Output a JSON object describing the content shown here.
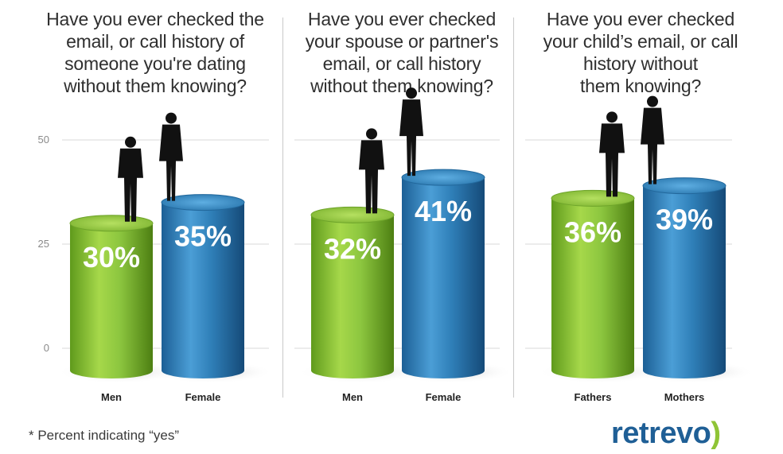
{
  "chart_data": [
    {
      "type": "bar",
      "title": "Have you ever checked the\nemail, or call history of\nsomeone you're dating\nwithout them knowing?",
      "categories": [
        "Men",
        "Female"
      ],
      "values": [
        30,
        35
      ],
      "value_labels": [
        "30%",
        "35%"
      ],
      "colors": [
        "#8cc63f",
        "#2f7fb8"
      ],
      "yticks": [
        0,
        25,
        50
      ],
      "ylim": [
        0,
        50
      ],
      "grid": true
    },
    {
      "type": "bar",
      "title": "Have you ever checked\nyour spouse or partner's\nemail, or call history\nwithout them knowing?",
      "categories": [
        "Men",
        "Female"
      ],
      "values": [
        32,
        41
      ],
      "value_labels": [
        "32%",
        "41%"
      ],
      "colors": [
        "#8cc63f",
        "#2f7fb8"
      ],
      "ylim": [
        0,
        50
      ],
      "grid": true
    },
    {
      "type": "bar",
      "title": "Have you ever checked\nyour child’s email, or call\nhistory without\nthem knowing?",
      "categories": [
        "Fathers",
        "Mothers"
      ],
      "values": [
        36,
        39
      ],
      "value_labels": [
        "36%",
        "39%"
      ],
      "colors": [
        "#8cc63f",
        "#2f7fb8"
      ],
      "ylim": [
        0,
        50
      ],
      "grid": true
    }
  ],
  "footnote": "* Percent indicating “yes”",
  "brand": {
    "name": "retrevo",
    "mark": ")"
  },
  "icons": {
    "men": "man-silhouette-icon",
    "women": "woman-silhouette-icon"
  }
}
